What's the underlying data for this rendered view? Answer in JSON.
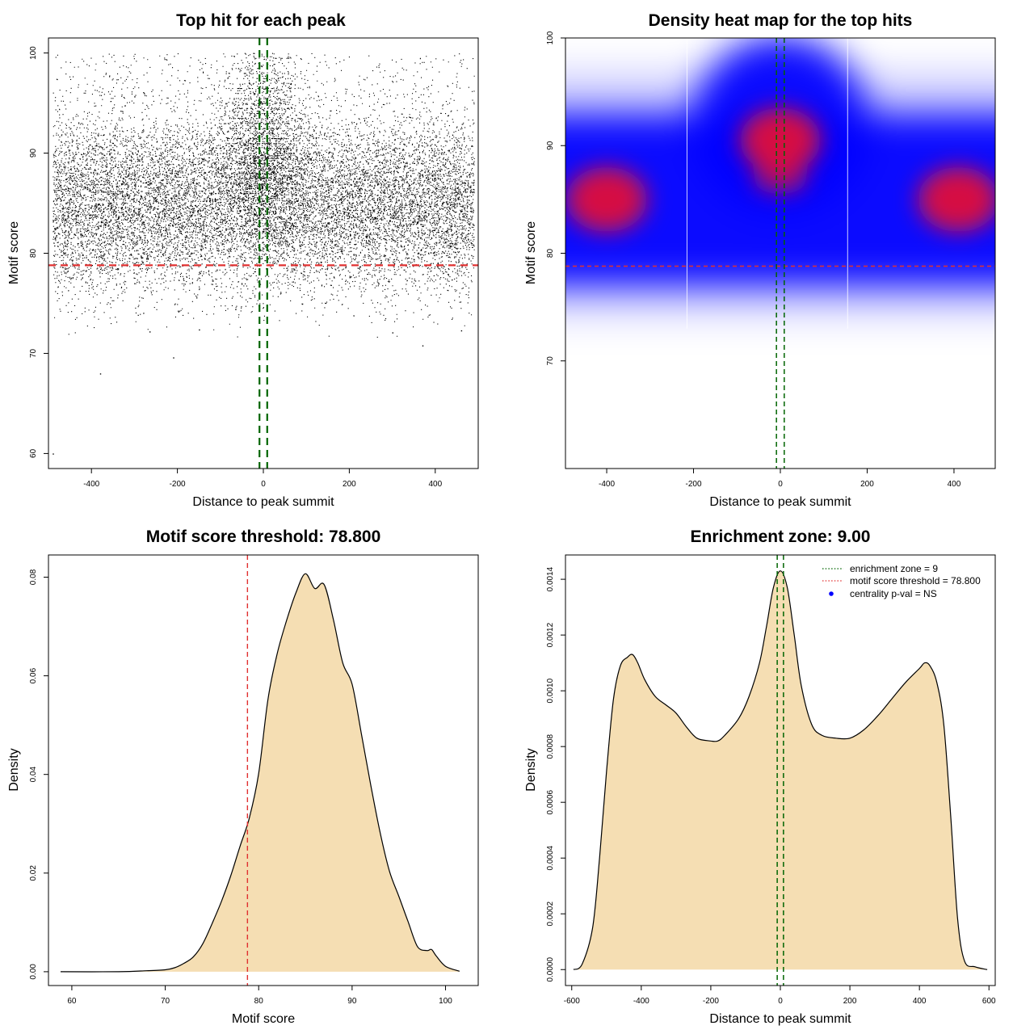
{
  "chart_data": [
    {
      "id": "scatter",
      "type": "scatter",
      "title": "Top hit for each peak",
      "xlabel": "Distance to peak summit",
      "ylabel": "Motif score",
      "xlim": [
        -500,
        500
      ],
      "ylim": [
        58.5,
        101.5
      ],
      "xticks": [
        -400,
        -200,
        0,
        200,
        400
      ],
      "yticks": [
        60,
        70,
        80,
        90,
        100
      ],
      "threshold_score": 78.8,
      "enrichment_zone": [
        -9,
        9
      ],
      "n_points_approx": 30000,
      "density_note": "points concentrated between 78 and 95; near-summit excess up to 100; outliers at (-490,60), (-380,68), (-210,69.6), (370,70.8)",
      "colors": {
        "points": "#000000",
        "threshold": "#e03030",
        "zone": "#006400"
      }
    },
    {
      "id": "heatmap",
      "type": "heatmap",
      "title": "Density heat map for the top hits",
      "xlabel": "Distance to peak summit",
      "ylabel": "Motif score",
      "xlim": [
        -495,
        495
      ],
      "ylim": [
        60,
        100
      ],
      "xticks": [
        -400,
        -200,
        0,
        200,
        400
      ],
      "yticks": [
        70,
        80,
        90,
        100
      ],
      "threshold_score": 78.8,
      "enrichment_zone": [
        -9,
        9
      ],
      "hotspots": [
        {
          "x": -400,
          "y": 85,
          "level": "high"
        },
        {
          "x": 410,
          "y": 85,
          "level": "high"
        },
        {
          "x": 0,
          "y": 90.5,
          "level": "high"
        },
        {
          "x": 0,
          "y": 87,
          "level": "medium"
        }
      ],
      "colors": {
        "low": "#ffffff",
        "mid": "#0000ff",
        "high": "#e0103a",
        "threshold": "#e03030",
        "zone": "#006400"
      }
    },
    {
      "id": "score_density",
      "type": "area",
      "title": "Motif score threshold: 78.800",
      "xlabel": "Motif score",
      "ylabel": "Density",
      "xlim": [
        57.5,
        103.5
      ],
      "ylim": [
        -0.0028,
        0.0845
      ],
      "xticks": [
        60,
        70,
        80,
        90,
        100
      ],
      "yticks": [
        0.0,
        0.02,
        0.04,
        0.06,
        0.08
      ],
      "ytick_labels": [
        "0.00",
        "0.02",
        "0.04",
        "0.06",
        "0.08"
      ],
      "threshold_score": 78.8,
      "x": [
        58.8,
        65,
        68,
        70,
        71,
        72,
        73,
        74,
        75,
        76,
        77,
        78,
        79,
        80,
        81,
        82,
        83,
        84,
        85,
        86,
        87,
        88,
        89,
        90,
        91,
        92,
        93,
        94,
        95,
        96,
        97,
        98,
        98.5,
        99,
        100,
        101.5
      ],
      "y": [
        0.0,
        0.0,
        0.0002,
        0.0004,
        0.0008,
        0.0017,
        0.003,
        0.0056,
        0.0097,
        0.0142,
        0.0194,
        0.0254,
        0.0312,
        0.0402,
        0.0553,
        0.0646,
        0.0713,
        0.0769,
        0.0807,
        0.0777,
        0.0785,
        0.0714,
        0.0626,
        0.0583,
        0.0482,
        0.0378,
        0.0282,
        0.0204,
        0.0153,
        0.0101,
        0.0051,
        0.0043,
        0.0045,
        0.0032,
        0.0011,
        0.0001
      ],
      "colors": {
        "fill": "#f5deb3",
        "line": "#000000",
        "threshold": "#e03030"
      }
    },
    {
      "id": "position_density",
      "type": "area",
      "title": "Enrichment zone: 9.00",
      "xlabel": "Distance to peak summit",
      "ylabel": "Density",
      "xlim": [
        -618,
        618
      ],
      "ylim": [
        -5.72e-05,
        0.0014872
      ],
      "xticks": [
        -600,
        -400,
        -200,
        0,
        200,
        400,
        600
      ],
      "yticks": [
        0,
        0.0002,
        0.0004,
        0.0006,
        0.0008,
        0.001,
        0.0012,
        0.0014
      ],
      "ytick_labels": [
        "0.0000",
        "0.0002",
        "0.0004",
        "0.0006",
        "0.0008",
        "0.0010",
        "0.0012",
        "0.0014"
      ],
      "enrichment_zone": [
        -9,
        9
      ],
      "x": [
        -595,
        -570,
        -540,
        -520,
        -500,
        -480,
        -460,
        -440,
        -425,
        -410,
        -390,
        -360,
        -330,
        -300,
        -270,
        -240,
        -200,
        -180,
        -160,
        -120,
        -90,
        -60,
        -40,
        -20,
        0,
        20,
        40,
        60,
        90,
        120,
        160,
        200,
        240,
        280,
        320,
        360,
        400,
        415,
        430,
        450,
        470,
        490,
        510,
        530,
        560,
        595
      ],
      "y": [
        0,
        2e-05,
        0.00015,
        0.0004,
        0.00071,
        0.00097,
        0.00109,
        0.00112,
        0.00113,
        0.0011,
        0.00104,
        0.00098,
        0.00095,
        0.00092,
        0.00087,
        0.00083,
        0.00082,
        0.00082,
        0.00084,
        0.0009,
        0.00098,
        0.0011,
        0.00123,
        0.00137,
        0.00143,
        0.00137,
        0.0012,
        0.00102,
        0.00088,
        0.00084,
        0.00083,
        0.00083,
        0.00086,
        0.00091,
        0.00097,
        0.00103,
        0.00108,
        0.0011,
        0.00109,
        0.00103,
        0.00088,
        0.00055,
        0.00018,
        3e-05,
        1e-05,
        0
      ],
      "legend": [
        {
          "label": "enrichment zone = 9",
          "style": "dotted-line",
          "color": "#006400"
        },
        {
          "label": "motif score threshold = 78.800",
          "style": "dotted-line",
          "color": "#e03030"
        },
        {
          "label": "centrality p-val = NS",
          "style": "point",
          "color": "#0000ff"
        }
      ],
      "legend_position": "top-right",
      "colors": {
        "fill": "#f5deb3",
        "line": "#000000",
        "zone": "#006400"
      }
    }
  ]
}
